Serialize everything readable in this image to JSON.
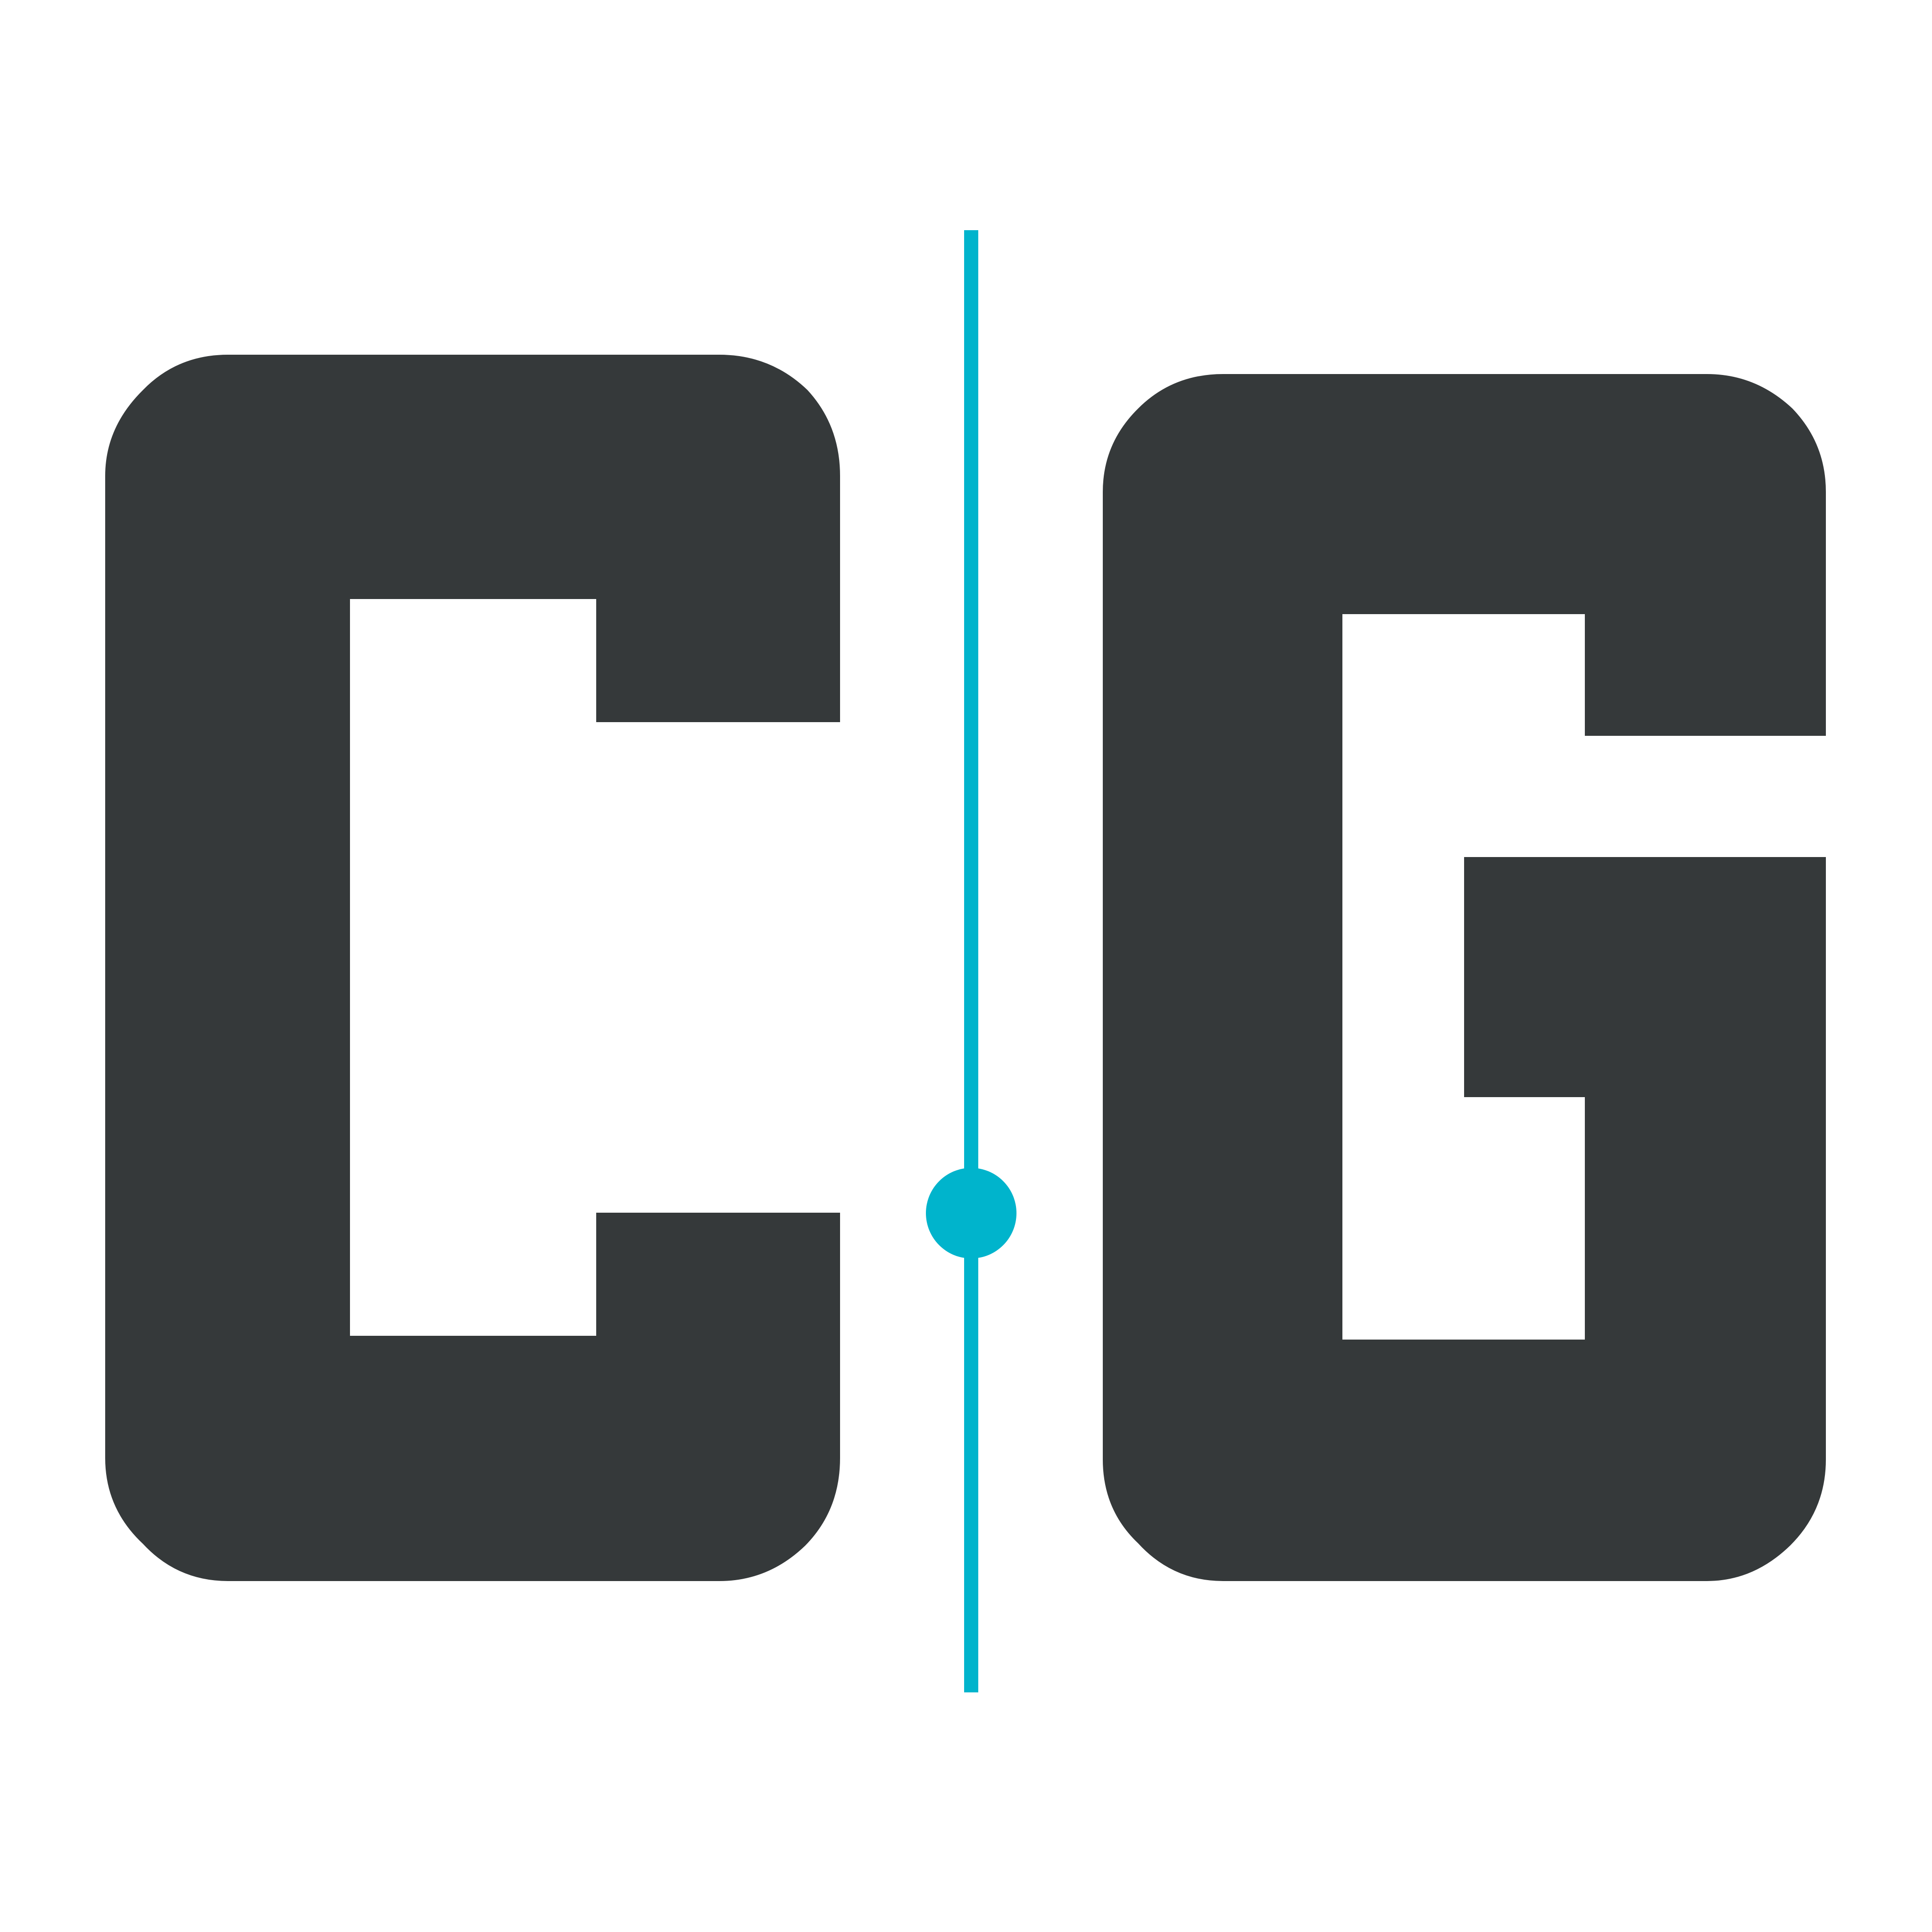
{
  "logo": {
    "letters": [
      "C",
      "G"
    ],
    "colors": {
      "letter": "#35393a",
      "accent": "#00b4cc",
      "background": "#ffffff"
    },
    "icon": "cg-monogram-logo"
  }
}
